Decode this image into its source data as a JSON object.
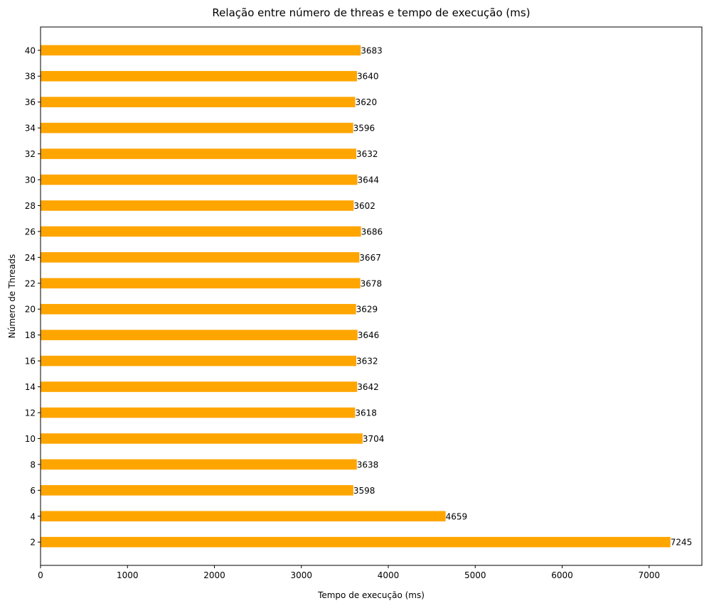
{
  "chart_data": {
    "type": "bar",
    "orientation": "horizontal",
    "title": "Relação entre número de threas e tempo de execução (ms)",
    "xlabel": "Tempo de execução (ms)",
    "ylabel": "Número de Threads",
    "categories": [
      "2",
      "4",
      "6",
      "8",
      "10",
      "12",
      "14",
      "16",
      "18",
      "20",
      "22",
      "24",
      "26",
      "28",
      "30",
      "32",
      "34",
      "36",
      "38",
      "40"
    ],
    "values": [
      7245,
      4659,
      3598,
      3638,
      3704,
      3618,
      3642,
      3632,
      3646,
      3629,
      3678,
      3667,
      3686,
      3602,
      3644,
      3632,
      3596,
      3620,
      3640,
      3683
    ],
    "xlim": [
      0,
      7607
    ],
    "xticks": [
      0,
      1000,
      2000,
      3000,
      4000,
      5000,
      6000,
      7000
    ],
    "bar_color": "#ffa500",
    "grid": false,
    "legend": "none"
  }
}
